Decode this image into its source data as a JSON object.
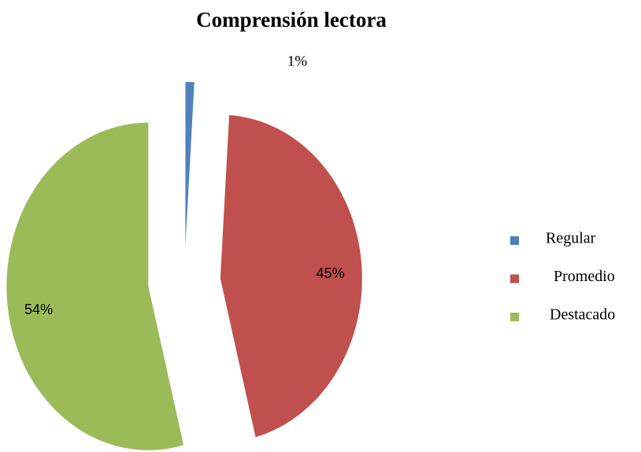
{
  "chart_data": {
    "type": "pie",
    "title": "Comprensión lectora",
    "categories": [
      "Regular",
      "Promedio",
      "Destacado"
    ],
    "values": [
      1,
      45,
      54
    ],
    "value_labels": [
      "1%",
      "45%",
      "54%"
    ],
    "colors": [
      "#4f81bd",
      "#c0504d",
      "#9bbb59"
    ],
    "legend": "right"
  }
}
